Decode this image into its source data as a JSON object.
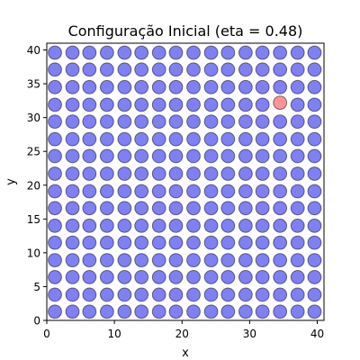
{
  "chart_data": {
    "type": "scatter",
    "title": "Configuração Inicial (eta = 0.48)",
    "xlabel": "x",
    "ylabel": "y",
    "xlim": [
      0,
      41
    ],
    "ylim": [
      0,
      41
    ],
    "xticks": [
      0,
      10,
      20,
      30,
      40
    ],
    "yticks": [
      0,
      5,
      10,
      15,
      20,
      25,
      30,
      35,
      40
    ],
    "grid": false,
    "legend": "none",
    "lattice": {
      "x_values": [
        1.2,
        3.8,
        6.3,
        8.9,
        11.5,
        14.0,
        16.6,
        19.1,
        21.7,
        24.3,
        26.8,
        29.4,
        31.9,
        34.5,
        37.1,
        39.6
      ],
      "y_values": [
        1.3,
        3.8,
        6.4,
        8.9,
        11.5,
        14.0,
        16.6,
        19.1,
        21.7,
        24.3,
        26.8,
        29.4,
        31.9,
        34.5,
        37.1,
        39.6
      ],
      "color": "#0000ee"
    },
    "highlight_points": [
      {
        "x": 34.5,
        "y": 32.2,
        "color": "#ff2a2a"
      }
    ]
  }
}
